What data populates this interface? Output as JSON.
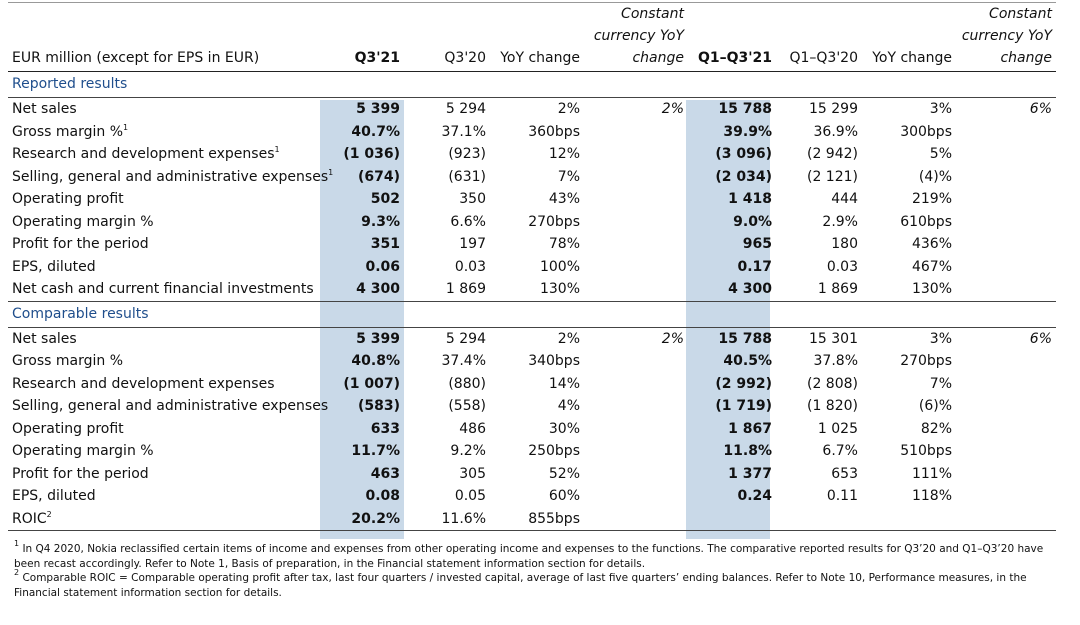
{
  "header": {
    "label": "EUR million (except for EPS in EUR)",
    "q3_21": "Q3'21",
    "q3_20": "Q3'20",
    "yoy1": "YoY change",
    "cc1": "Constant currency YoY change",
    "q1q3_21": "Q1–Q3'21",
    "q1q3_20": "Q1–Q3'20",
    "yoy2": "YoY change",
    "cc2": "Constant currency YoY change"
  },
  "reported": {
    "title": "Reported results",
    "rows": [
      {
        "label": "Net sales",
        "sup": "",
        "c1": "5 399",
        "c2": "5 294",
        "c3": "2%",
        "c4": "2%",
        "c5": "15 788",
        "c6": "15 299",
        "c7": "3%",
        "c8": "6%"
      },
      {
        "label": "Gross margin %",
        "sup": "1",
        "c1": "40.7%",
        "c2": "37.1%",
        "c3": "360bps",
        "c4": "",
        "c5": "39.9%",
        "c6": "36.9%",
        "c7": "300bps",
        "c8": ""
      },
      {
        "label": "Research and development expenses",
        "sup": "1",
        "c1": "(1 036)",
        "c2": "(923)",
        "c3": "12%",
        "c4": "",
        "c5": "(3 096)",
        "c6": "(2 942)",
        "c7": "5%",
        "c8": ""
      },
      {
        "label": "Selling, general and administrative expenses",
        "sup": "1",
        "c1": "(674)",
        "c2": "(631)",
        "c3": "7%",
        "c4": "",
        "c5": "(2 034)",
        "c6": "(2 121)",
        "c7": "(4)%",
        "c8": ""
      },
      {
        "label": "Operating profit",
        "sup": "",
        "c1": "502",
        "c2": "350",
        "c3": "43%",
        "c4": "",
        "c5": "1 418",
        "c6": "444",
        "c7": "219%",
        "c8": ""
      },
      {
        "label": "Operating margin %",
        "sup": "",
        "c1": "9.3%",
        "c2": "6.6%",
        "c3": "270bps",
        "c4": "",
        "c5": "9.0%",
        "c6": "2.9%",
        "c7": "610bps",
        "c8": ""
      },
      {
        "label": "Profit for the period",
        "sup": "",
        "c1": "351",
        "c2": "197",
        "c3": "78%",
        "c4": "",
        "c5": "965",
        "c6": "180",
        "c7": "436%",
        "c8": ""
      },
      {
        "label": "EPS, diluted",
        "sup": "",
        "c1": "0.06",
        "c2": "0.03",
        "c3": "100%",
        "c4": "",
        "c5": "0.17",
        "c6": "0.03",
        "c7": "467%",
        "c8": ""
      },
      {
        "label": "Net cash and current financial investments",
        "sup": "",
        "c1": "4 300",
        "c2": "1 869",
        "c3": "130%",
        "c4": "",
        "c5": "4 300",
        "c6": "1 869",
        "c7": "130%",
        "c8": ""
      }
    ]
  },
  "comparable": {
    "title": "Comparable results",
    "rows": [
      {
        "label": "Net sales",
        "sup": "",
        "c1": "5 399",
        "c2": "5 294",
        "c3": "2%",
        "c4": "2%",
        "c5": "15 788",
        "c6": "15 301",
        "c7": "3%",
        "c8": "6%"
      },
      {
        "label": "Gross margin %",
        "sup": "",
        "c1": "40.8%",
        "c2": "37.4%",
        "c3": "340bps",
        "c4": "",
        "c5": "40.5%",
        "c6": "37.8%",
        "c7": "270bps",
        "c8": ""
      },
      {
        "label": "Research and development expenses",
        "sup": "",
        "c1": "(1 007)",
        "c2": "(880)",
        "c3": "14%",
        "c4": "",
        "c5": "(2 992)",
        "c6": "(2 808)",
        "c7": "7%",
        "c8": ""
      },
      {
        "label": "Selling, general and administrative expenses",
        "sup": "",
        "c1": "(583)",
        "c2": "(558)",
        "c3": "4%",
        "c4": "",
        "c5": "(1 719)",
        "c6": "(1 820)",
        "c7": "(6)%",
        "c8": ""
      },
      {
        "label": "Operating profit",
        "sup": "",
        "c1": "633",
        "c2": "486",
        "c3": "30%",
        "c4": "",
        "c5": "1 867",
        "c6": "1 025",
        "c7": "82%",
        "c8": ""
      },
      {
        "label": "Operating margin %",
        "sup": "",
        "c1": "11.7%",
        "c2": "9.2%",
        "c3": "250bps",
        "c4": "",
        "c5": "11.8%",
        "c6": "6.7%",
        "c7": "510bps",
        "c8": ""
      },
      {
        "label": "Profit for the period",
        "sup": "",
        "c1": "463",
        "c2": "305",
        "c3": "52%",
        "c4": "",
        "c5": "1 377",
        "c6": "653",
        "c7": "111%",
        "c8": ""
      },
      {
        "label": "EPS, diluted",
        "sup": "",
        "c1": "0.08",
        "c2": "0.05",
        "c3": "60%",
        "c4": "",
        "c5": "0.24",
        "c6": "0.11",
        "c7": "118%",
        "c8": ""
      },
      {
        "label": "ROIC",
        "sup": "2",
        "c1": "20.2%",
        "c2": "11.6%",
        "c3": "855bps",
        "c4": "",
        "c5": "",
        "c6": "",
        "c7": "",
        "c8": ""
      }
    ]
  },
  "footnotes": {
    "n1_mark": "1",
    "n1": "In Q4 2020, Nokia reclassified certain items of income and expenses from other operating income and expenses to the functions. The comparative reported results for Q3’20 and Q1–Q3’20 have been recast accordingly. Refer to Note 1, Basis of preparation, in the Financial statement information section for details.",
    "n2_mark": "2",
    "n2": "Comparable ROIC = Comparable operating profit after tax, last four quarters / invested capital, average of last five quarters’ ending balances. Refer to Note 10, Performance measures, in the Financial statement information section for details."
  },
  "colors": {
    "highlight": "#c9d9e8",
    "section_title": "#1f4e8c"
  }
}
